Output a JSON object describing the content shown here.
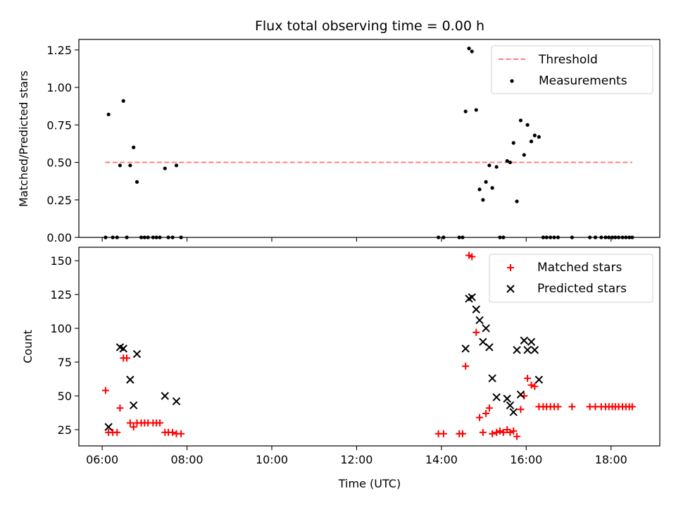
{
  "figure_title": "Flux total observing time = 0.00 h",
  "x_label": "Time (UTC)",
  "x_ticks": [
    {
      "hour": 6,
      "label": "06:00"
    },
    {
      "hour": 8,
      "label": "08:00"
    },
    {
      "hour": 10,
      "label": "10:00"
    },
    {
      "hour": 12,
      "label": "12:00"
    },
    {
      "hour": 14,
      "label": "14:00"
    },
    {
      "hour": 16,
      "label": "16:00"
    },
    {
      "hour": 18,
      "label": "18:00"
    }
  ],
  "colors": {
    "threshold": "#ff7f7f",
    "measurements": "#000000",
    "matched": "#ff0000",
    "predicted": "#000000"
  },
  "chart_data": [
    {
      "type": "scatter",
      "title": "Flux total observing time = 0.00 h",
      "xlabel": "",
      "ylabel": "Matched/Predicted stars",
      "x_unit": "hours UTC",
      "xlim": [
        5.45,
        19.15
      ],
      "ylim": [
        0,
        1.32
      ],
      "y_ticks": [
        {
          "v": 0,
          "label": "0.00"
        },
        {
          "v": 0.25,
          "label": "0.25"
        },
        {
          "v": 0.5,
          "label": "0.50"
        },
        {
          "v": 0.75,
          "label": "0.75"
        },
        {
          "v": 1.0,
          "label": "1.00"
        },
        {
          "v": 1.25,
          "label": "1.25"
        }
      ],
      "legend_position": "top-right",
      "threshold": {
        "name": "Threshold",
        "x": [
          6.07,
          18.5
        ],
        "y": 0.5,
        "style": "dashed"
      },
      "series": [
        {
          "name": "Measurements",
          "marker": "dot",
          "points": [
            [
              6.08,
              0
            ],
            [
              6.15,
              0.82
            ],
            [
              6.25,
              0
            ],
            [
              6.35,
              0
            ],
            [
              6.42,
              0.48
            ],
            [
              6.5,
              0.91
            ],
            [
              6.58,
              0
            ],
            [
              6.66,
              0.48
            ],
            [
              6.74,
              0.6
            ],
            [
              6.82,
              0.37
            ],
            [
              6.92,
              0
            ],
            [
              7.0,
              0
            ],
            [
              7.08,
              0
            ],
            [
              7.2,
              0
            ],
            [
              7.28,
              0
            ],
            [
              7.36,
              0
            ],
            [
              7.48,
              0.46
            ],
            [
              7.56,
              0
            ],
            [
              7.66,
              0
            ],
            [
              7.75,
              0.48
            ],
            [
              7.86,
              0
            ],
            [
              13.93,
              0
            ],
            [
              14.05,
              0
            ],
            [
              14.42,
              0
            ],
            [
              14.5,
              0
            ],
            [
              14.57,
              0.84
            ],
            [
              14.65,
              1.26
            ],
            [
              14.72,
              1.24
            ],
            [
              14.82,
              0.85
            ],
            [
              14.9,
              0.32
            ],
            [
              14.98,
              0.25
            ],
            [
              15.05,
              0.37
            ],
            [
              15.13,
              0.48
            ],
            [
              15.2,
              0.33
            ],
            [
              15.3,
              0.47
            ],
            [
              15.38,
              0
            ],
            [
              15.46,
              0
            ],
            [
              15.55,
              0.51
            ],
            [
              15.62,
              0.5
            ],
            [
              15.7,
              0.63
            ],
            [
              15.78,
              0.24
            ],
            [
              15.87,
              0.78
            ],
            [
              15.95,
              0.55
            ],
            [
              16.03,
              0.75
            ],
            [
              16.12,
              0.64
            ],
            [
              16.2,
              0.68
            ],
            [
              16.3,
              0.67
            ],
            [
              16.4,
              0
            ],
            [
              16.48,
              0
            ],
            [
              16.57,
              0
            ],
            [
              16.66,
              0
            ],
            [
              16.75,
              0
            ],
            [
              17.08,
              0
            ],
            [
              17.5,
              0
            ],
            [
              17.63,
              0
            ],
            [
              17.77,
              0
            ],
            [
              17.87,
              0
            ],
            [
              17.95,
              0
            ],
            [
              18.03,
              0
            ],
            [
              18.1,
              0
            ],
            [
              18.18,
              0
            ],
            [
              18.27,
              0
            ],
            [
              18.35,
              0
            ],
            [
              18.43,
              0
            ],
            [
              18.5,
              0
            ]
          ]
        }
      ]
    },
    {
      "type": "scatter",
      "title": "",
      "xlabel": "Time (UTC)",
      "ylabel": "Count",
      "x_unit": "hours UTC",
      "xlim": [
        5.45,
        19.15
      ],
      "ylim": [
        13,
        160
      ],
      "y_ticks": [
        {
          "v": 25,
          "label": "25"
        },
        {
          "v": 50,
          "label": "50"
        },
        {
          "v": 75,
          "label": "75"
        },
        {
          "v": 100,
          "label": "100"
        },
        {
          "v": 125,
          "label": "125"
        },
        {
          "v": 150,
          "label": "150"
        }
      ],
      "legend_position": "top-right",
      "series": [
        {
          "name": "Matched stars",
          "marker": "plus",
          "points": [
            [
              6.08,
              54
            ],
            [
              6.15,
              23
            ],
            [
              6.25,
              23
            ],
            [
              6.35,
              23
            ],
            [
              6.42,
              41
            ],
            [
              6.5,
              78
            ],
            [
              6.58,
              78
            ],
            [
              6.66,
              30
            ],
            [
              6.74,
              27
            ],
            [
              6.82,
              30
            ],
            [
              6.92,
              30
            ],
            [
              7.0,
              30
            ],
            [
              7.08,
              30
            ],
            [
              7.2,
              30
            ],
            [
              7.28,
              30
            ],
            [
              7.36,
              30
            ],
            [
              7.48,
              23
            ],
            [
              7.56,
              23
            ],
            [
              7.66,
              23
            ],
            [
              7.75,
              22
            ],
            [
              7.86,
              22
            ],
            [
              13.93,
              22
            ],
            [
              14.05,
              22
            ],
            [
              14.42,
              22
            ],
            [
              14.5,
              22
            ],
            [
              14.57,
              72
            ],
            [
              14.65,
              154
            ],
            [
              14.72,
              153
            ],
            [
              14.82,
              97
            ],
            [
              14.9,
              34
            ],
            [
              14.98,
              23
            ],
            [
              15.05,
              37
            ],
            [
              15.13,
              41
            ],
            [
              15.2,
              22
            ],
            [
              15.3,
              23
            ],
            [
              15.38,
              24
            ],
            [
              15.46,
              23
            ],
            [
              15.55,
              25
            ],
            [
              15.62,
              23
            ],
            [
              15.7,
              24
            ],
            [
              15.78,
              20
            ],
            [
              15.87,
              40
            ],
            [
              15.95,
              50
            ],
            [
              16.03,
              63
            ],
            [
              16.12,
              58
            ],
            [
              16.2,
              57
            ],
            [
              16.3,
              42
            ],
            [
              16.4,
              42
            ],
            [
              16.48,
              42
            ],
            [
              16.57,
              42
            ],
            [
              16.66,
              42
            ],
            [
              16.75,
              42
            ],
            [
              17.08,
              42
            ],
            [
              17.5,
              42
            ],
            [
              17.63,
              42
            ],
            [
              17.77,
              42
            ],
            [
              17.87,
              42
            ],
            [
              17.95,
              42
            ],
            [
              18.03,
              42
            ],
            [
              18.1,
              42
            ],
            [
              18.18,
              42
            ],
            [
              18.27,
              42
            ],
            [
              18.35,
              42
            ],
            [
              18.43,
              42
            ],
            [
              18.5,
              42
            ]
          ]
        },
        {
          "name": "Predicted stars",
          "marker": "x",
          "points": [
            [
              6.15,
              27
            ],
            [
              6.42,
              86
            ],
            [
              6.5,
              85
            ],
            [
              6.66,
              62
            ],
            [
              6.74,
              43
            ],
            [
              6.82,
              81
            ],
            [
              7.48,
              50
            ],
            [
              7.75,
              46
            ],
            [
              14.57,
              85
            ],
            [
              14.65,
              122
            ],
            [
              14.72,
              123
            ],
            [
              14.82,
              114
            ],
            [
              14.9,
              106
            ],
            [
              14.98,
              90
            ],
            [
              15.05,
              100
            ],
            [
              15.13,
              86
            ],
            [
              15.2,
              63
            ],
            [
              15.3,
              49
            ],
            [
              15.55,
              48
            ],
            [
              15.62,
              43
            ],
            [
              15.7,
              38
            ],
            [
              15.78,
              84
            ],
            [
              15.87,
              51
            ],
            [
              15.95,
              91
            ],
            [
              16.03,
              84
            ],
            [
              16.12,
              90
            ],
            [
              16.2,
              84
            ],
            [
              16.3,
              62
            ]
          ]
        }
      ]
    }
  ]
}
